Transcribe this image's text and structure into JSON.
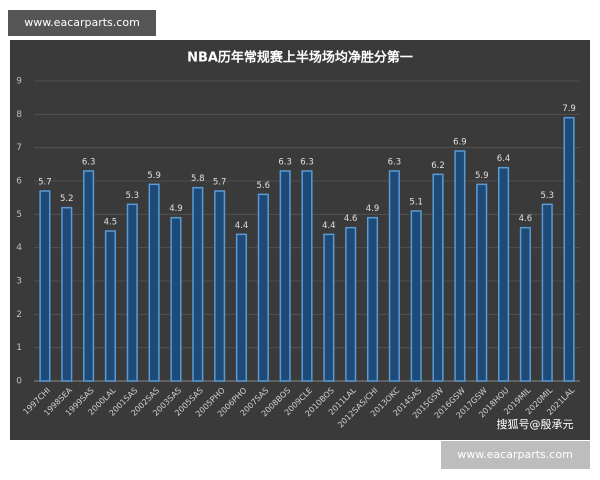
{
  "chart_data": {
    "type": "bar",
    "title": "NBA历年常规赛上半场场均净胜分第一",
    "categories": [
      "1997CHI",
      "1998SEA",
      "1999SAS",
      "2000LAL",
      "2001SAS",
      "2002SAS",
      "2003SAS",
      "2005SAS",
      "2005PHO",
      "2006PHO",
      "2007SAS",
      "2008BOS",
      "2009CLE",
      "2010BOS",
      "2011LAL",
      "2012SAS/CHI",
      "2013OKC",
      "2014SAS",
      "2015GSW",
      "2016GSW",
      "2017GSW",
      "2018HOU",
      "2019MIL",
      "2020MIL",
      "2021LAL"
    ],
    "values": [
      5.7,
      5.2,
      6.3,
      4.5,
      5.3,
      5.9,
      4.9,
      5.8,
      5.7,
      4.4,
      5.6,
      6.3,
      6.3,
      4.4,
      4.6,
      4.9,
      6.3,
      5.1,
      6.2,
      6.9,
      5.9,
      6.4,
      4.6,
      5.3,
      7.9
    ],
    "color": "#1e4a78",
    "edge_color": "#5b9bd5",
    "ylim": [
      0,
      9
    ],
    "yticks": [
      0,
      1,
      2,
      3,
      4,
      5,
      6,
      7,
      8,
      9
    ],
    "grid": true
  },
  "watermarks": [
    "www.eacarparts.com",
    "www.eacarparts.com",
    "搜狐号@殷承元"
  ]
}
